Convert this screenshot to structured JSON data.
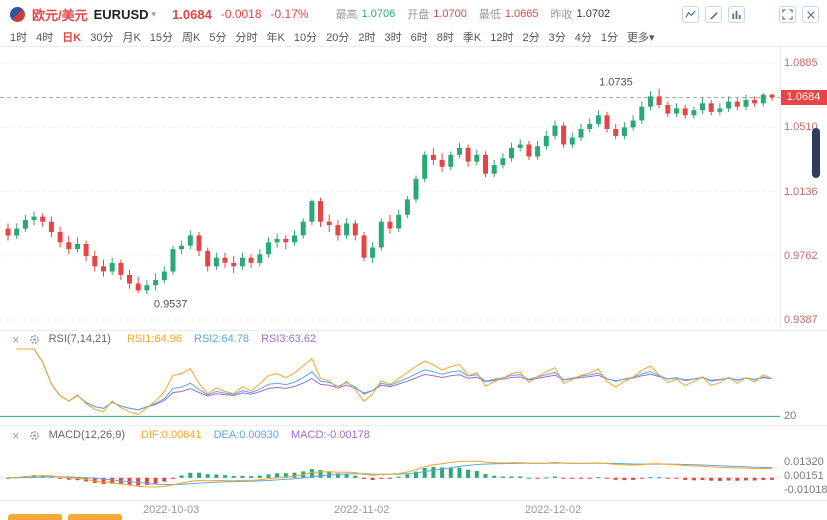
{
  "header": {
    "pair_cn": "欧元/美元",
    "pair_code": "EURUSD",
    "price": "1.0684",
    "change": "-0.0018",
    "change_pct": "-0.17%",
    "stats": [
      {
        "label": "最高",
        "value": "1.0706",
        "color": "green"
      },
      {
        "label": "开盘",
        "value": "1.0700",
        "color": "red"
      },
      {
        "label": "最低",
        "value": "1.0665",
        "color": "red"
      },
      {
        "label": "昨收",
        "value": "1.0702",
        "color": "dark"
      }
    ]
  },
  "icons": {
    "caret_down": "▾",
    "panel_close": "×"
  },
  "toolbar": {
    "items": [
      "1时",
      "4时",
      "日K",
      "30分",
      "月K",
      "15分",
      "周K",
      "5分",
      "分时",
      "年K",
      "10分",
      "20分",
      "2时",
      "3时",
      "6时",
      "8时",
      "季K",
      "12时",
      "2分",
      "3分",
      "4分",
      "1分"
    ],
    "active": "日K",
    "more_label": "更多"
  },
  "price_axis": {
    "current": "1.0684"
  },
  "rsi": {
    "title": "RSI(7,14,21)",
    "values": [
      {
        "text": "RSI1:64.96",
        "color": "orange"
      },
      {
        "text": "RSI2:64.78",
        "color": "blue"
      },
      {
        "text": "RSI3:63.62",
        "color": "purple"
      }
    ],
    "axis_label": "20"
  },
  "macd": {
    "title": "MACD(12,26,9)",
    "values": [
      {
        "text": "DIF:0.00841",
        "color": "orange"
      },
      {
        "text": "DEA:0.00930",
        "color": "blue"
      },
      {
        "text": "MACD:-0.00178",
        "color": "purple"
      }
    ]
  },
  "colors": {
    "red": "#e64545",
    "green": "#2ba877",
    "orange": "#f5a623",
    "blue": "#5aa7e8",
    "purple": "#9b6dd6",
    "dark": "#333333",
    "axis_text": "#c96a6a"
  },
  "chart_data": {
    "type": "candlestick",
    "symbol": "EURUSD",
    "timeframe": "日K",
    "title": "欧元/美元 EURUSD 日K",
    "y_axis_ticks": [
      1.0885,
      1.051,
      1.0136,
      0.9762,
      0.9387
    ],
    "y_range": [
      0.9329,
      1.0978
    ],
    "current_price": 1.0684,
    "high_annotation": {
      "value": "1.0735",
      "index": 75
    },
    "low_annotation": {
      "value": "0.9537",
      "index": 16
    },
    "x_ticks": [
      {
        "label": "2022-10-03",
        "index": 19
      },
      {
        "label": "2022-11-02",
        "index": 41
      },
      {
        "label": "2022-12-02",
        "index": 63
      }
    ],
    "ohlc": [
      [
        0.992,
        0.995,
        0.985,
        0.988
      ],
      [
        0.988,
        0.995,
        0.986,
        0.992
      ],
      [
        0.992,
        1.0,
        0.99,
        0.997
      ],
      [
        0.997,
        1.002,
        0.994,
        0.999
      ],
      [
        0.999,
        1.001,
        0.993,
        0.996
      ],
      [
        0.996,
        0.999,
        0.987,
        0.99
      ],
      [
        0.99,
        0.993,
        0.981,
        0.984
      ],
      [
        0.984,
        0.988,
        0.977,
        0.98
      ],
      [
        0.98,
        0.987,
        0.978,
        0.983
      ],
      [
        0.983,
        0.985,
        0.973,
        0.976
      ],
      [
        0.976,
        0.979,
        0.967,
        0.97
      ],
      [
        0.97,
        0.974,
        0.964,
        0.967
      ],
      [
        0.967,
        0.975,
        0.965,
        0.972
      ],
      [
        0.972,
        0.974,
        0.962,
        0.965
      ],
      [
        0.965,
        0.968,
        0.957,
        0.96
      ],
      [
        0.96,
        0.964,
        0.9545,
        0.956
      ],
      [
        0.956,
        0.962,
        0.9537,
        0.959
      ],
      [
        0.959,
        0.966,
        0.956,
        0.962
      ],
      [
        0.962,
        0.97,
        0.96,
        0.967
      ],
      [
        0.967,
        0.982,
        0.965,
        0.98
      ],
      [
        0.98,
        0.985,
        0.977,
        0.982
      ],
      [
        0.982,
        0.991,
        0.98,
        0.988
      ],
      [
        0.988,
        0.99,
        0.976,
        0.979
      ],
      [
        0.979,
        0.981,
        0.967,
        0.97
      ],
      [
        0.97,
        0.978,
        0.968,
        0.975
      ],
      [
        0.975,
        0.978,
        0.969,
        0.972
      ],
      [
        0.972,
        0.976,
        0.966,
        0.97
      ],
      [
        0.97,
        0.978,
        0.968,
        0.975
      ],
      [
        0.975,
        0.977,
        0.969,
        0.972
      ],
      [
        0.972,
        0.98,
        0.97,
        0.977
      ],
      [
        0.977,
        0.987,
        0.975,
        0.984
      ],
      [
        0.984,
        0.989,
        0.981,
        0.986
      ],
      [
        0.986,
        0.988,
        0.98,
        0.984
      ],
      [
        0.984,
        0.991,
        0.982,
        0.988
      ],
      [
        0.988,
        0.998,
        0.986,
        0.996
      ],
      [
        0.996,
        1.009,
        0.994,
        1.008
      ],
      [
        1.008,
        1.01,
        0.993,
        0.996
      ],
      [
        0.996,
        1.0,
        0.99,
        0.994
      ],
      [
        0.994,
        0.997,
        0.985,
        0.988
      ],
      [
        0.988,
        0.998,
        0.986,
        0.995
      ],
      [
        0.995,
        0.997,
        0.985,
        0.988
      ],
      [
        0.988,
        0.99,
        0.973,
        0.975
      ],
      [
        0.975,
        0.984,
        0.972,
        0.981
      ],
      [
        0.981,
        0.998,
        0.979,
        0.996
      ],
      [
        0.996,
        1.0,
        0.989,
        0.992
      ],
      [
        0.992,
        1.003,
        0.99,
        1.0
      ],
      [
        1.0,
        1.011,
        0.998,
        1.009
      ],
      [
        1.009,
        1.023,
        1.007,
        1.021
      ],
      [
        1.021,
        1.037,
        1.019,
        1.035
      ],
      [
        1.035,
        1.039,
        1.029,
        1.032
      ],
      [
        1.032,
        1.036,
        1.025,
        1.028
      ],
      [
        1.028,
        1.037,
        1.026,
        1.035
      ],
      [
        1.035,
        1.042,
        1.033,
        1.039
      ],
      [
        1.039,
        1.041,
        1.028,
        1.031
      ],
      [
        1.031,
        1.038,
        1.029,
        1.035
      ],
      [
        1.035,
        1.037,
        1.022,
        1.024
      ],
      [
        1.024,
        1.032,
        1.022,
        1.029
      ],
      [
        1.029,
        1.036,
        1.027,
        1.033
      ],
      [
        1.033,
        1.042,
        1.031,
        1.039
      ],
      [
        1.039,
        1.044,
        1.037,
        1.041
      ],
      [
        1.041,
        1.043,
        1.032,
        1.034
      ],
      [
        1.034,
        1.043,
        1.032,
        1.04
      ],
      [
        1.04,
        1.049,
        1.038,
        1.046
      ],
      [
        1.046,
        1.055,
        1.044,
        1.052
      ],
      [
        1.052,
        1.054,
        1.039,
        1.041
      ],
      [
        1.041,
        1.048,
        1.039,
        1.045
      ],
      [
        1.045,
        1.053,
        1.043,
        1.05
      ],
      [
        1.05,
        1.056,
        1.048,
        1.053
      ],
      [
        1.053,
        1.061,
        1.051,
        1.058
      ],
      [
        1.058,
        1.06,
        1.048,
        1.05
      ],
      [
        1.05,
        1.053,
        1.044,
        1.046
      ],
      [
        1.046,
        1.054,
        1.044,
        1.051
      ],
      [
        1.051,
        1.058,
        1.049,
        1.055
      ],
      [
        1.055,
        1.066,
        1.053,
        1.063
      ],
      [
        1.063,
        1.072,
        1.061,
        1.069
      ],
      [
        1.069,
        1.0735,
        1.062,
        1.064
      ],
      [
        1.064,
        1.066,
        1.057,
        1.059
      ],
      [
        1.059,
        1.065,
        1.057,
        1.062
      ],
      [
        1.062,
        1.064,
        1.056,
        1.058
      ],
      [
        1.058,
        1.063,
        1.056,
        1.061
      ],
      [
        1.061,
        1.068,
        1.059,
        1.065
      ],
      [
        1.065,
        1.067,
        1.058,
        1.06
      ],
      [
        1.06,
        1.065,
        1.058,
        1.062
      ],
      [
        1.062,
        1.069,
        1.06,
        1.066
      ],
      [
        1.066,
        1.068,
        1.061,
        1.063
      ],
      [
        1.063,
        1.07,
        1.061,
        1.067
      ],
      [
        1.067,
        1.069,
        1.063,
        1.065
      ],
      [
        1.065,
        1.071,
        1.063,
        1.07
      ],
      [
        1.07,
        1.0706,
        1.0665,
        1.0684
      ]
    ],
    "indicators": {
      "rsi": {
        "periods": [
          7,
          14,
          21
        ],
        "scale_min": 15,
        "scale_max": 95,
        "level_line": 20
      },
      "macd": {
        "fast": 12,
        "slow": 26,
        "signal": 9,
        "axis_labels": [
          "0.01320",
          "0.00151",
          "-0.01018"
        ]
      }
    }
  },
  "bottom": {
    "cutoff_buttons": 2
  }
}
